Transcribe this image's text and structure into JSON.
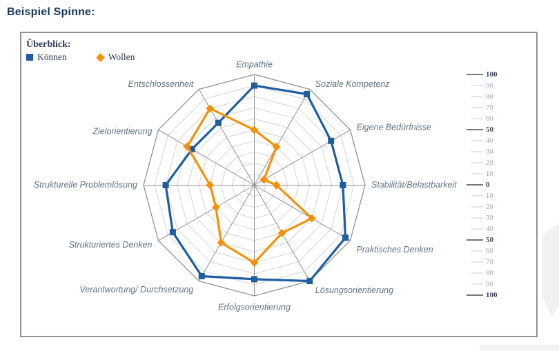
{
  "page": {
    "title": "Beispiel Spinne:"
  },
  "legend": {
    "heading": "Überblick:",
    "items": [
      {
        "label": "Können",
        "marker": "square-icon",
        "color": "#1e5d9f"
      },
      {
        "label": "Wollen",
        "marker": "diamond-icon",
        "color": "#f39108"
      }
    ]
  },
  "chart_data": {
    "type": "radar",
    "categories": [
      "Empathie",
      "Soziale Kompetenz",
      "Eigene Bedürfnisse",
      "Stabilität/Belastbarkeit",
      "Praktisches Denken",
      "Lösungsorientierung",
      "Erfolgsorientierung",
      "Verantwortung/ Durchsetzung",
      "Strukturiertes Denken",
      "Strukturelle Problemlösung",
      "Zielorientierung",
      "Entschlossenheit"
    ],
    "series": [
      {
        "name": "Können",
        "marker": "square",
        "color": "#1e5d9f",
        "values": [
          90,
          95,
          80,
          80,
          95,
          100,
          85,
          95,
          85,
          80,
          65,
          65
        ]
      },
      {
        "name": "Wollen",
        "marker": "diamond",
        "color": "#f39108",
        "values": [
          50,
          40,
          10,
          20,
          60,
          50,
          70,
          60,
          40,
          40,
          70,
          80
        ]
      }
    ],
    "rmin": 0,
    "rmax": 100,
    "ring_step": 10,
    "grid": true,
    "legend_position": "top-left",
    "scale_ticks": {
      "values": [
        100,
        90,
        80,
        70,
        60,
        50,
        40,
        30,
        20,
        10,
        0,
        10,
        20,
        30,
        40,
        50,
        60,
        70,
        80,
        90,
        100
      ],
      "major_every": 5
    },
    "colors": {
      "axis_label": "#5f7385",
      "spoke": "#8f9296",
      "ring": "#d2d4d6",
      "outer_ring": "#8f9296",
      "major_tick": "#4a4a4a",
      "minor_tick": "#c9ccd1",
      "major_tick_label": "#3c4759",
      "minor_tick_label": "#9aa7b5"
    }
  }
}
